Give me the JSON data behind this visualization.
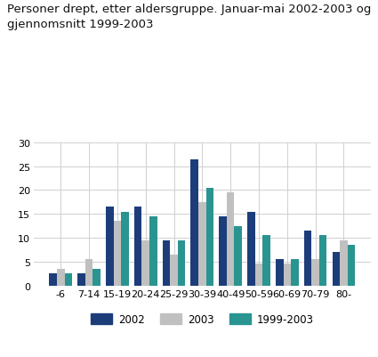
{
  "title": "Personer drept, etter aldersgruppe. Januar-mai 2002-2003 og\ngjennomsnitt 1999-2003",
  "categories": [
    "-6",
    "7-14",
    "15-19",
    "20-24",
    "25-29",
    "30-39",
    "40-49",
    "50-59",
    "60-69",
    "70-79",
    "80-"
  ],
  "series": {
    "2002": [
      2.5,
      2.5,
      16.5,
      16.5,
      9.5,
      26.5,
      14.5,
      15.5,
      5.5,
      11.5,
      7.0
    ],
    "2003": [
      3.5,
      5.5,
      13.5,
      9.5,
      6.5,
      17.5,
      19.5,
      4.5,
      4.5,
      5.5,
      9.5
    ],
    "1999-2003": [
      2.5,
      3.5,
      15.5,
      14.5,
      9.5,
      20.5,
      12.5,
      10.5,
      5.5,
      10.5,
      8.5
    ]
  },
  "colors": {
    "2002": "#1c3d7a",
    "2003": "#c0c0c0",
    "1999-2003": "#2a9490"
  },
  "ylim": [
    0,
    30
  ],
  "yticks": [
    0,
    5,
    10,
    15,
    20,
    25,
    30
  ],
  "grid_color": "#d0d0d0",
  "bg_color": "#ffffff",
  "title_fontsize": 9.5,
  "tick_fontsize": 8,
  "legend_fontsize": 8.5
}
